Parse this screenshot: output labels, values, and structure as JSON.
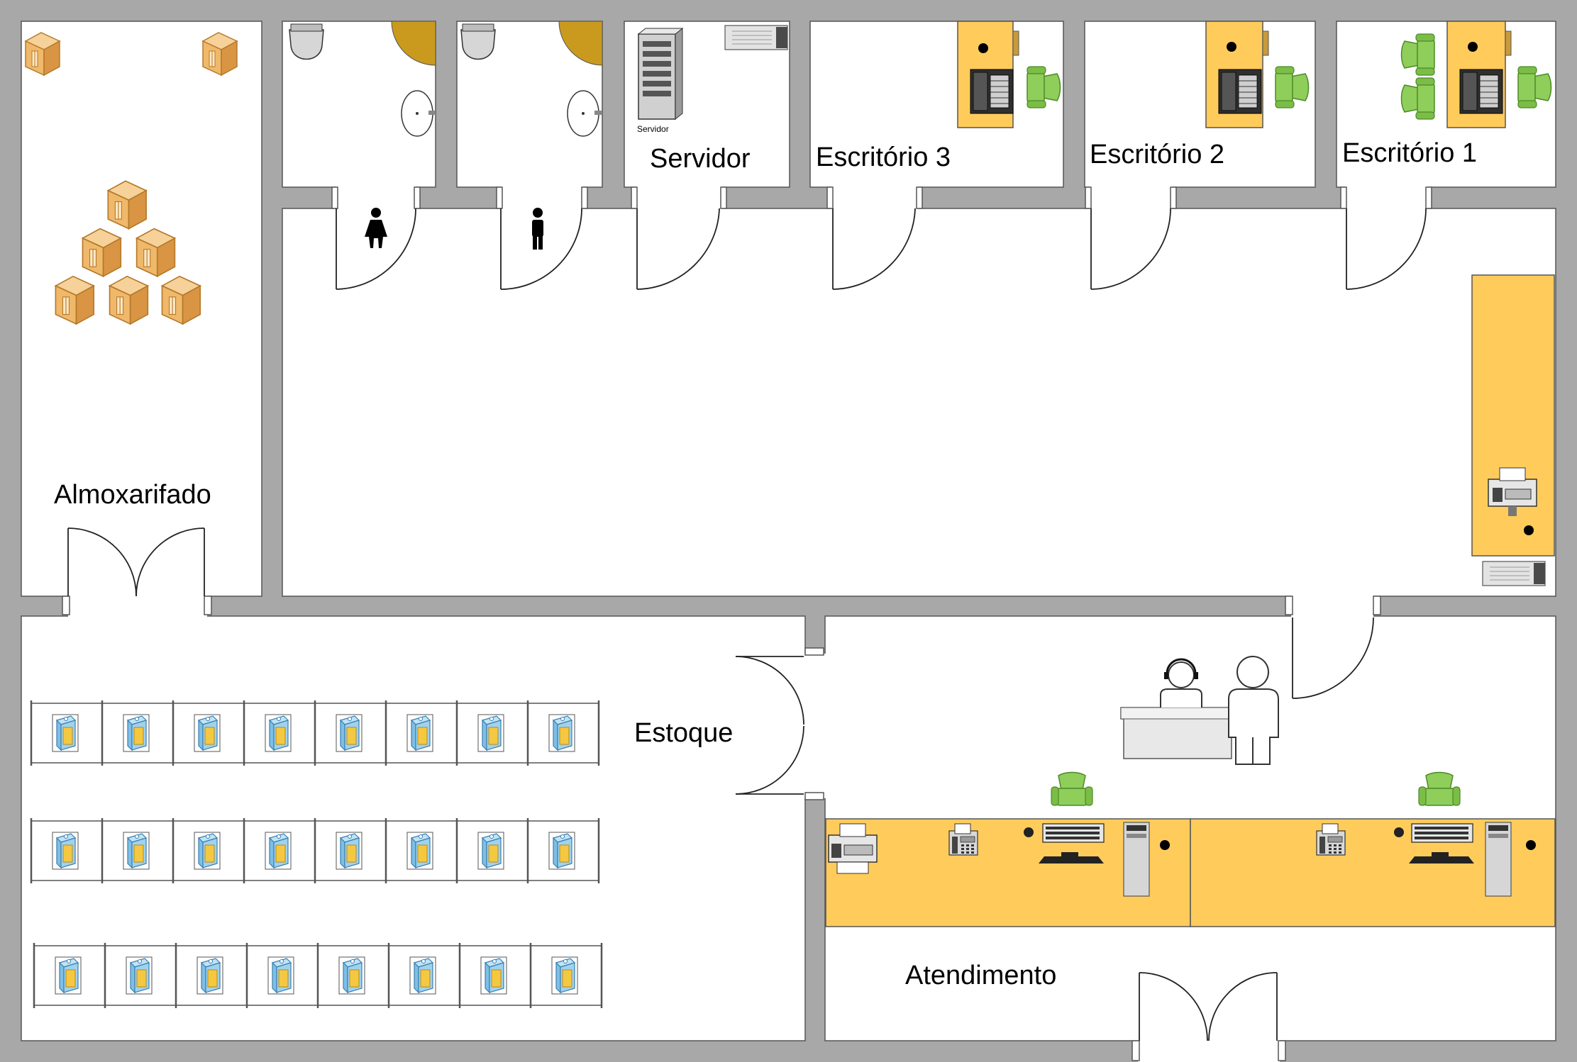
{
  "rooms": {
    "almoxarifado": "Almoxarifado",
    "servidor": "Servidor",
    "escritorio3": "Escritório 3",
    "escritorio2": "Escritório 2",
    "escritorio1": "Escritório 1",
    "estoque": "Estoque",
    "atendimento": "Atendimento"
  },
  "server_caption": "Servidor",
  "colors": {
    "wall": "#a8a8a8",
    "desk": "#ffcc5c",
    "chair": "#8fce5a",
    "box": "#e9a94e",
    "product": "#9fd2ef"
  },
  "icons": {
    "restroom_female": "woman-restroom-icon",
    "restroom_male": "man-restroom-icon",
    "server": "server-rack-icon",
    "printer": "printer-icon",
    "fax": "fax-phone-icon",
    "box": "cardboard-box-icon",
    "chair": "office-chair-icon"
  },
  "shelf_rows": 3,
  "shelf_products_per_row": 8
}
